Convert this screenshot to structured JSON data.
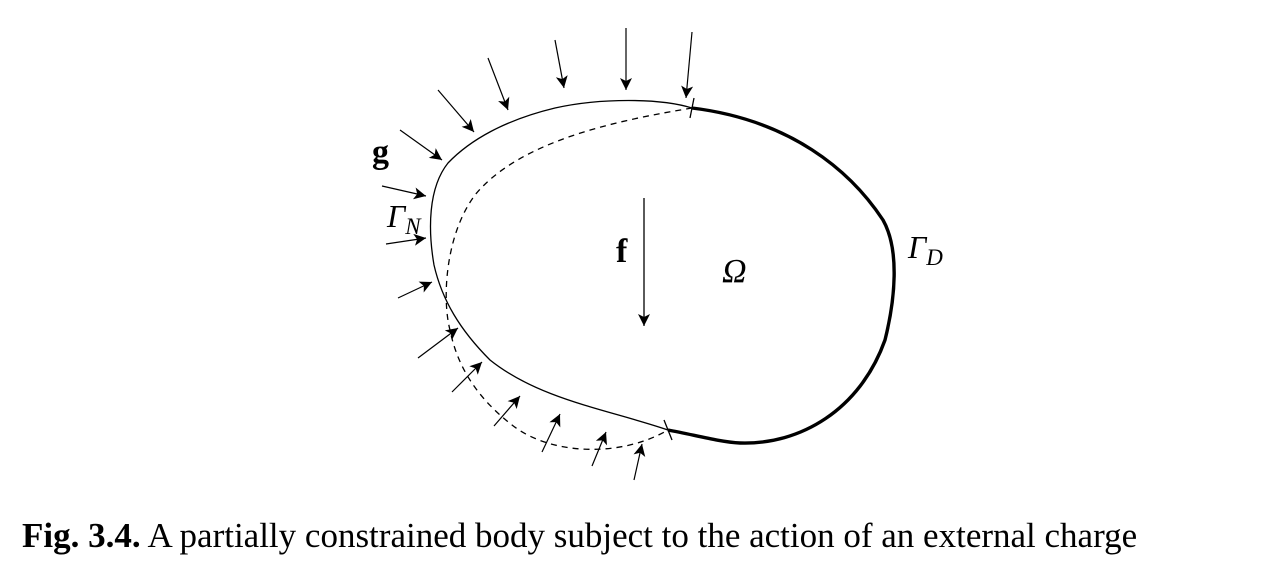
{
  "figure": {
    "labels": {
      "g": "g",
      "f": "f",
      "omega": "Ω",
      "gamma_n_main": "Γ",
      "gamma_n_sub": "N",
      "gamma_d_main": "Γ",
      "gamma_d_sub": "D"
    },
    "colors": {
      "stroke": "#000000",
      "background": "#ffffff"
    }
  },
  "caption": {
    "number": "Fig. 3.4.",
    "text": "A partially constrained body subject to the action of an external charge"
  }
}
